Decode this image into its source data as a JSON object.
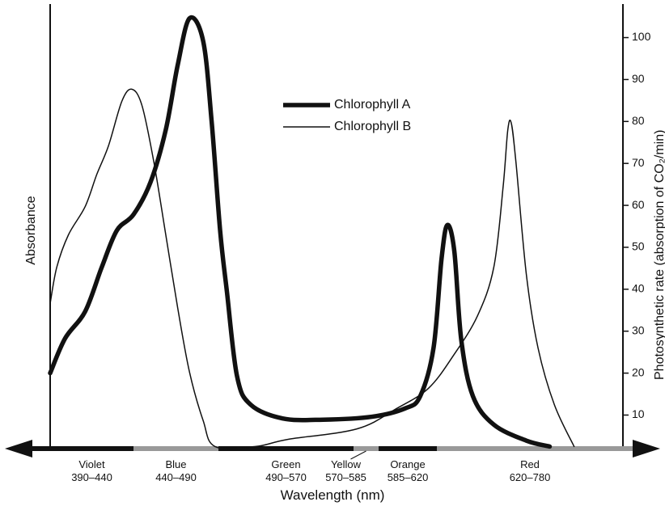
{
  "chart_data": {
    "type": "line",
    "x_label": "Wavelength (nm)",
    "y_label": "Absorbance",
    "y2_label": "Photosynthetic rate (absorption of CO₂/min)",
    "bands": [
      {
        "name": "Violet",
        "range": "390–440",
        "start": 390,
        "end": 440
      },
      {
        "name": "Blue",
        "range": "440–490",
        "start": 440,
        "end": 490
      },
      {
        "name": "Green",
        "range": "490–570",
        "start": 490,
        "end": 570
      },
      {
        "name": "Yellow",
        "range": "570–585",
        "start": 570,
        "end": 585
      },
      {
        "name": "Orange",
        "range": "585–620",
        "start": 585,
        "end": 620
      },
      {
        "name": "Red",
        "range": "620–780",
        "start": 620,
        "end": 780
      }
    ],
    "y2lim": [
      2,
      108
    ],
    "y2ticks": [
      10,
      20,
      30,
      40,
      50,
      60,
      70,
      80,
      90,
      100
    ],
    "legend": "top-center",
    "series": [
      {
        "name": "Chlorophyll A",
        "color": "#111111",
        "line_width": 5.5,
        "axis": "y2",
        "x": [
          390,
          399,
          411,
          421,
          430,
          440,
          450,
          459,
          466,
          473,
          481,
          486,
          491,
          495,
          501,
          509,
          528,
          552,
          581,
          601,
          610,
          618,
          624,
          629,
          635,
          641,
          651,
          669,
          697,
          717
        ],
        "values": [
          20,
          28.3,
          34.7,
          45.3,
          54,
          57.8,
          65.5,
          78,
          93.4,
          104.6,
          99.2,
          80,
          54,
          39.5,
          19.3,
          12.5,
          9.2,
          8.9,
          9.6,
          11.6,
          14.5,
          26,
          47.2,
          55.3,
          49.1,
          27.9,
          14.5,
          7.7,
          3.9,
          2.5
        ]
      },
      {
        "name": "Chlorophyll B",
        "color": "#111111",
        "line_width": 1.5,
        "axis": "y2",
        "x": [
          390,
          394,
          401,
          411,
          418,
          425,
          433,
          439,
          445,
          452,
          459,
          466,
          473,
          481,
          488,
          512,
          531,
          572,
          596,
          615,
          634,
          655,
          669,
          677,
          681,
          684,
          688,
          697,
          707,
          721,
          738
        ],
        "values": [
          36.6,
          45.3,
          53,
          59.7,
          67.4,
          74.2,
          84.8,
          87.7,
          83.8,
          70.3,
          53,
          35.6,
          20.2,
          8.7,
          2.5,
          2.5,
          4.2,
          6.7,
          11.6,
          16.4,
          24.1,
          33.7,
          45.3,
          64.5,
          78,
          79.6,
          70.3,
          43.4,
          26,
          12.5,
          2.5
        ]
      }
    ]
  }
}
